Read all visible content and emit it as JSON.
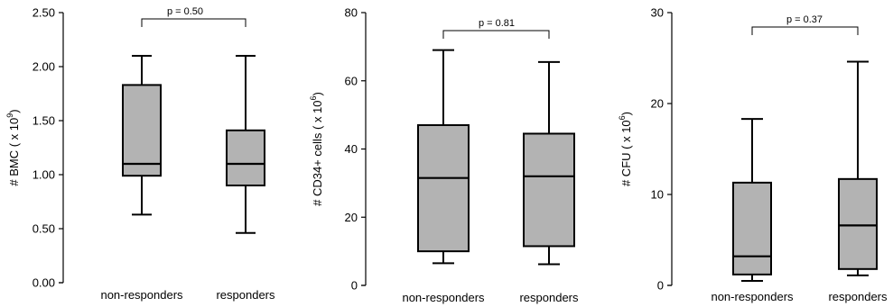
{
  "chart_data": [
    {
      "type": "box",
      "ylabel_parts": {
        "main": "# BMC  ( x 10",
        "exp": "9",
        "close": ")"
      },
      "ylim": [
        0,
        2.5
      ],
      "yticks": [
        "0.00",
        "0.50",
        "1.00",
        "1.50",
        "2.00",
        "2.50"
      ],
      "ytick_values": [
        0,
        0.5,
        1.0,
        1.5,
        2.0,
        2.5
      ],
      "categories": [
        "non-responders",
        "responders"
      ],
      "boxes": [
        {
          "min": 0.63,
          "q1": 0.99,
          "median": 1.1,
          "q3": 1.83,
          "max": 2.1
        },
        {
          "min": 0.46,
          "q1": 0.9,
          "median": 1.1,
          "q3": 1.41,
          "max": 2.1
        }
      ],
      "p_value": "p = 0.50"
    },
    {
      "type": "box",
      "ylabel_parts": {
        "main": "# CD34+ cells  ( x 10",
        "exp": "6",
        "close": ")"
      },
      "ylim": [
        0,
        80
      ],
      "yticks": [
        "0",
        "20",
        "40",
        "60",
        "80"
      ],
      "ytick_values": [
        0,
        20,
        40,
        60,
        80
      ],
      "categories": [
        "non-responders",
        "responders"
      ],
      "boxes": [
        {
          "min": 6.5,
          "q1": 10.0,
          "median": 31.5,
          "q3": 47.0,
          "max": 69.0
        },
        {
          "min": 6.2,
          "q1": 11.5,
          "median": 32.0,
          "q3": 44.5,
          "max": 65.5
        }
      ],
      "p_value": "p = 0.81"
    },
    {
      "type": "box",
      "ylabel_parts": {
        "main": "# CFU  ( x 10",
        "exp": "6",
        "close": ")"
      },
      "ylim": [
        0,
        30
      ],
      "yticks": [
        "0",
        "10",
        "20",
        "30"
      ],
      "ytick_values": [
        0,
        10,
        20,
        30
      ],
      "categories": [
        "non-responders",
        "responders"
      ],
      "boxes": [
        {
          "min": 0.5,
          "q1": 1.2,
          "median": 3.2,
          "q3": 11.3,
          "max": 18.3
        },
        {
          "min": 1.1,
          "q1": 1.8,
          "median": 6.6,
          "q3": 11.7,
          "max": 24.6
        }
      ],
      "p_value": "p = 0.37"
    }
  ]
}
